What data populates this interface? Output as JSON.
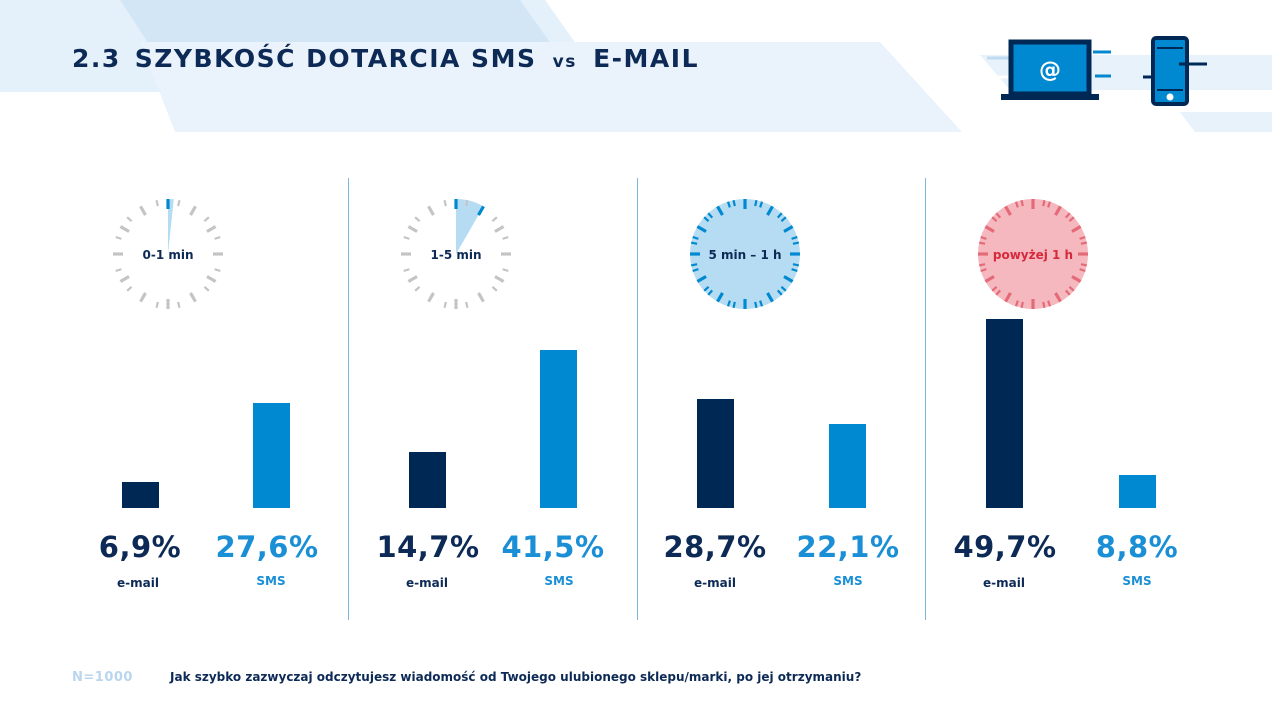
{
  "title": {
    "number": "2.3",
    "part1": "SZYBKOŚĆ DOTARCIA SMS",
    "vs": "vs",
    "part2": "E-MAIL"
  },
  "header_icons": [
    "laptop-email-icon",
    "smartphone-sms-icon"
  ],
  "colors": {
    "email": "#002855",
    "sms": "#0089d0",
    "title": "#0d2a56",
    "clock_grey": "#c4c4c4",
    "clock_blue_fill": "#b5dcf2",
    "clock_red_fill": "#f5b8be"
  },
  "series_labels": {
    "email": "e-mail",
    "sms": "SMS"
  },
  "panels": [
    {
      "clock_label": "0-1 min",
      "clock_style": "grey",
      "clock_sweep_minutes": 1,
      "email_pct": "6,9%",
      "sms_pct": "27,6%"
    },
    {
      "clock_label": "1-5 min",
      "clock_style": "grey",
      "clock_sweep_minutes": 5,
      "email_pct": "14,7%",
      "sms_pct": "41,5%"
    },
    {
      "clock_label": "5 min – 1 h",
      "clock_style": "blue",
      "clock_sweep_minutes": 60,
      "email_pct": "28,7%",
      "sms_pct": "22,1%"
    },
    {
      "clock_label": "powyżej 1 h",
      "clock_style": "red",
      "clock_sweep_minutes": 60,
      "email_pct": "49,7%",
      "sms_pct": "8,8%"
    }
  ],
  "chart_data": {
    "type": "bar",
    "categories": [
      "0-1 min",
      "1-5 min",
      "5 min – 1 h",
      "powyżej 1 h"
    ],
    "series": [
      {
        "name": "e-mail",
        "values": [
          6.9,
          14.7,
          28.7,
          49.7
        ]
      },
      {
        "name": "SMS",
        "values": [
          27.6,
          41.5,
          22.1,
          8.8
        ]
      }
    ],
    "title": "2.3 SZYBKOŚĆ DOTARCIA SMS vs E-MAIL",
    "xlabel": "",
    "ylabel": "",
    "ylim": [
      0,
      50
    ],
    "grid": false,
    "legend": "none"
  },
  "footer": {
    "sample": "N=1000",
    "question": "Jak szybko zazwyczaj odczytujesz wiadomość od Twojego ulubionego sklepu/marki, po jej otrzymaniu?"
  }
}
